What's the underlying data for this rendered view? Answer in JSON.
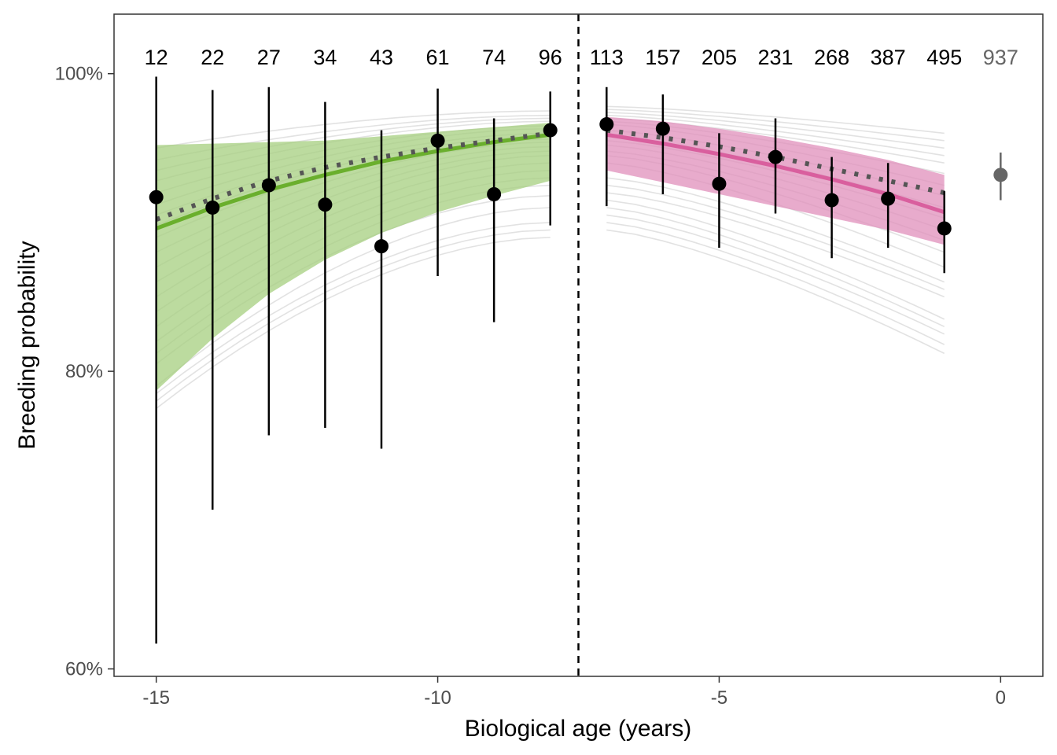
{
  "chart_data": {
    "type": "scatter",
    "xlabel": "Biological age (years)",
    "ylabel": "Breeding probability",
    "xlim": [
      -15.75,
      0.75
    ],
    "ylim": [
      0.595,
      1.04
    ],
    "x_ticks": [
      -15,
      -10,
      -5,
      0
    ],
    "x_tick_labels": [
      "-15",
      "-10",
      "-5",
      "0"
    ],
    "y_ticks": [
      0.6,
      0.8,
      1.0
    ],
    "y_tick_labels": [
      "60%",
      "80%",
      "100%"
    ],
    "grid": false,
    "divider_x": -7.5,
    "colors": {
      "pre_fit": "#6aaf2d",
      "pre_band": "#a5cf7f",
      "post_fit": "#d95f9e",
      "post_band": "#e08fbb",
      "points": "#000000",
      "reference": "#666666",
      "posterior_draws": "#bebebe",
      "dotted_fit": "#555555"
    },
    "points": [
      {
        "x": -15,
        "y": 0.917,
        "lo": 0.617,
        "hi": 0.998,
        "n": "12"
      },
      {
        "x": -14,
        "y": 0.91,
        "lo": 0.707,
        "hi": 0.989,
        "n": "22"
      },
      {
        "x": -13,
        "y": 0.925,
        "lo": 0.757,
        "hi": 0.991,
        "n": "27"
      },
      {
        "x": -12,
        "y": 0.912,
        "lo": 0.762,
        "hi": 0.981,
        "n": "34"
      },
      {
        "x": -11,
        "y": 0.884,
        "lo": 0.748,
        "hi": 0.962,
        "n": "43"
      },
      {
        "x": -10,
        "y": 0.955,
        "lo": 0.864,
        "hi": 0.99,
        "n": "61"
      },
      {
        "x": -9,
        "y": 0.919,
        "lo": 0.833,
        "hi": 0.97,
        "n": "74"
      },
      {
        "x": -8,
        "y": 0.962,
        "lo": 0.898,
        "hi": 0.988,
        "n": "96"
      },
      {
        "x": -7,
        "y": 0.966,
        "lo": 0.911,
        "hi": 0.991,
        "n": "113"
      },
      {
        "x": -6,
        "y": 0.963,
        "lo": 0.919,
        "hi": 0.986,
        "n": "157"
      },
      {
        "x": -5,
        "y": 0.926,
        "lo": 0.883,
        "hi": 0.96,
        "n": "205"
      },
      {
        "x": -4,
        "y": 0.944,
        "lo": 0.906,
        "hi": 0.97,
        "n": "231"
      },
      {
        "x": -3,
        "y": 0.915,
        "lo": 0.876,
        "hi": 0.944,
        "n": "268"
      },
      {
        "x": -2,
        "y": 0.916,
        "lo": 0.883,
        "hi": 0.94,
        "n": "387"
      },
      {
        "x": -1,
        "y": 0.896,
        "lo": 0.866,
        "hi": 0.921,
        "n": "495"
      }
    ],
    "reference_point": {
      "x": 0,
      "y": 0.932,
      "lo": 0.915,
      "hi": 0.947,
      "n": "937"
    },
    "pre_fit": {
      "x": [
        -15,
        -14,
        -13,
        -12,
        -11,
        -10,
        -9,
        -8
      ],
      "y": [
        0.896,
        0.91,
        0.922,
        0.932,
        0.941,
        0.948,
        0.954,
        0.959
      ],
      "lo": [
        0.787,
        0.822,
        0.852,
        0.875,
        0.893,
        0.907,
        0.918,
        0.928
      ],
      "hi": [
        0.952,
        0.953,
        0.954,
        0.955,
        0.958,
        0.961,
        0.964,
        0.967
      ]
    },
    "pre_dotted": {
      "x": [
        -15,
        -14,
        -13,
        -12,
        -11,
        -10,
        -9,
        -8
      ],
      "y": [
        0.902,
        0.916,
        0.928,
        0.937,
        0.944,
        0.95,
        0.955,
        0.96
      ]
    },
    "post_fit": {
      "x": [
        -7,
        -6,
        -5,
        -4,
        -3,
        -2,
        -1
      ],
      "y": [
        0.959,
        0.953,
        0.946,
        0.938,
        0.929,
        0.919,
        0.907
      ],
      "lo": [
        0.935,
        0.927,
        0.919,
        0.911,
        0.903,
        0.895,
        0.885
      ],
      "hi": [
        0.971,
        0.968,
        0.963,
        0.957,
        0.95,
        0.942,
        0.932
      ]
    },
    "post_dotted": {
      "x": [
        -7,
        -6,
        -5,
        -4,
        -3,
        -2,
        -1
      ],
      "y": [
        0.962,
        0.957,
        0.951,
        0.944,
        0.936,
        0.928,
        0.92
      ]
    },
    "posterior_draws": {
      "pre_start": [
        0.95,
        0.942,
        0.935,
        0.928,
        0.92,
        0.912,
        0.905,
        0.898,
        0.89,
        0.88,
        0.87,
        0.86,
        0.85,
        0.84,
        0.83,
        0.82,
        0.812,
        0.805,
        0.79,
        0.785,
        0.78,
        0.775
      ],
      "pre_end": [
        0.975,
        0.972,
        0.97,
        0.968,
        0.965,
        0.963,
        0.96,
        0.958,
        0.956,
        0.954,
        0.951,
        0.948,
        0.945,
        0.94,
        0.935,
        0.93,
        0.925,
        0.918,
        0.91,
        0.9,
        0.895,
        0.89
      ],
      "post_start": [
        0.978,
        0.976,
        0.974,
        0.972,
        0.97,
        0.968,
        0.966,
        0.962,
        0.958,
        0.955,
        0.952,
        0.948,
        0.945,
        0.94,
        0.93,
        0.925,
        0.92,
        0.915,
        0.91,
        0.905,
        0.9,
        0.895
      ],
      "post_end": [
        0.96,
        0.955,
        0.95,
        0.945,
        0.94,
        0.933,
        0.925,
        0.918,
        0.91,
        0.903,
        0.895,
        0.888,
        0.88,
        0.87,
        0.86,
        0.855,
        0.85,
        0.835,
        0.83,
        0.825,
        0.818,
        0.812
      ]
    }
  }
}
